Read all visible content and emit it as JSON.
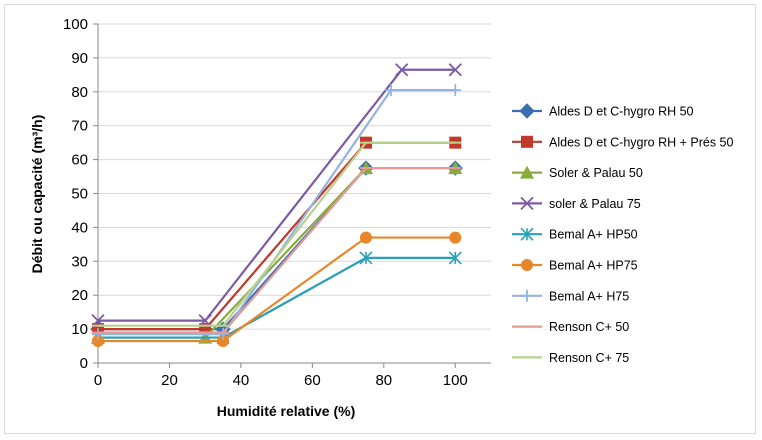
{
  "chart_data": {
    "type": "line",
    "title": "",
    "xlabel": "Humidité relative (%)",
    "ylabel": "Débit ou capacité (m³/h)",
    "xlim": [
      0,
      110
    ],
    "ylim": [
      0,
      100
    ],
    "xticks": [
      "0",
      "20",
      "40",
      "60",
      "80",
      "100"
    ],
    "yticks": [
      "0",
      "10",
      "20",
      "30",
      "40",
      "50",
      "60",
      "70",
      "80",
      "90",
      "100"
    ],
    "grid": "horizontal",
    "legend_position": "right",
    "series": [
      {
        "name": "Aldes D et C-hygro RH 50",
        "color": "#3a6fb0",
        "marker": "diamond",
        "points": [
          [
            0,
            10
          ],
          [
            35,
            10
          ],
          [
            75,
            57.5
          ],
          [
            100,
            57.5
          ]
        ]
      },
      {
        "name": "Aldes D et C-hygro RH + Prés 50",
        "color": "#c0392b",
        "marker": "square",
        "points": [
          [
            0,
            10
          ],
          [
            30,
            10
          ],
          [
            75,
            65
          ],
          [
            100,
            65
          ]
        ]
      },
      {
        "name": "Soler & Palau 50",
        "color": "#8aab3c",
        "marker": "triangle",
        "points": [
          [
            0,
            7.5
          ],
          [
            30,
            7.5
          ],
          [
            75,
            57.5
          ],
          [
            100,
            57.5
          ]
        ]
      },
      {
        "name": "soler & Palau 75",
        "color": "#7b5aa6",
        "marker": "x",
        "points": [
          [
            0,
            12.5
          ],
          [
            30,
            12.5
          ],
          [
            85,
            86.5
          ],
          [
            100,
            86.5
          ]
        ]
      },
      {
        "name": "Bemal A+ HP50",
        "color": "#2aa0b8",
        "marker": "star",
        "points": [
          [
            0,
            7.5
          ],
          [
            35,
            7.5
          ],
          [
            75,
            31
          ],
          [
            100,
            31
          ]
        ]
      },
      {
        "name": "Bemal A+ HP75",
        "color": "#e8862a",
        "marker": "circle",
        "points": [
          [
            0,
            6.5
          ],
          [
            35,
            6.5
          ],
          [
            75,
            37
          ],
          [
            100,
            37
          ]
        ]
      },
      {
        "name": "Bemal A+ H75",
        "color": "#94b3e0",
        "marker": "plus",
        "points": [
          [
            0,
            8.5
          ],
          [
            35,
            8.5
          ],
          [
            82,
            80.5
          ],
          [
            100,
            80.5
          ]
        ]
      },
      {
        "name": "Renson C+ 50",
        "color": "#e49a95",
        "marker": "dash",
        "points": [
          [
            0,
            9
          ],
          [
            35,
            9
          ],
          [
            75,
            57.5
          ],
          [
            100,
            57.5
          ]
        ]
      },
      {
        "name": "Renson C+ 75",
        "color": "#b9d18c",
        "marker": "dash",
        "points": [
          [
            0,
            11
          ],
          [
            35,
            11
          ],
          [
            75,
            65
          ],
          [
            100,
            65
          ]
        ]
      }
    ]
  }
}
